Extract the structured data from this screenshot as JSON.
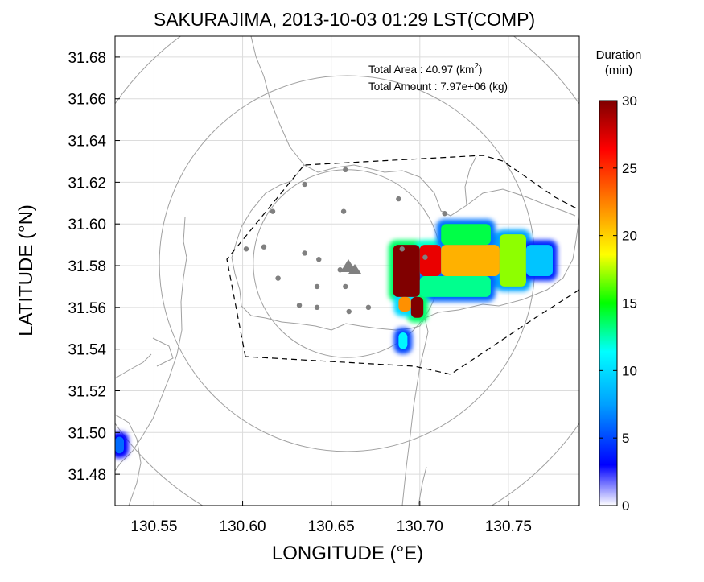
{
  "chart_data": {
    "type": "heatmap",
    "title": "SAKURAJIMA, 2013-10-03 01:29 LST(COMP)",
    "xlabel": "LONGITUDE (°E)",
    "ylabel": "LATITUDE (°N)",
    "xlim": [
      130.528,
      130.79
    ],
    "ylim": [
      31.465,
      31.69
    ],
    "xticks": [
      "130.55",
      "130.60",
      "130.65",
      "130.70",
      "130.75"
    ],
    "yticks": [
      "31.48",
      "31.50",
      "31.52",
      "31.54",
      "31.56",
      "31.58",
      "31.60",
      "31.62",
      "31.64",
      "31.66",
      "31.68"
    ],
    "grid": true,
    "annotations": {
      "total_area_label": "Total Area   : 40.97 (km",
      "total_area_sup": "2",
      "total_area_close": ")",
      "total_amount": "Total Amount : 7.97e+06 (kg)"
    },
    "colorbar": {
      "title_line1": "Duration",
      "title_line2": "(min)",
      "ticks": [
        "0",
        "5",
        "10",
        "15",
        "20",
        "25",
        "30"
      ],
      "min": 0,
      "max": 30
    },
    "vent": {
      "lon": 130.659,
      "lat": 31.581
    },
    "range_rings_radius_km": [
      5,
      10,
      15
    ],
    "stations": [
      [
        130.658,
        31.626
      ],
      [
        130.635,
        31.619
      ],
      [
        130.688,
        31.612
      ],
      [
        130.617,
        31.606
      ],
      [
        130.657,
        31.606
      ],
      [
        130.714,
        31.605
      ],
      [
        130.612,
        31.589
      ],
      [
        130.635,
        31.586
      ],
      [
        130.602,
        31.588
      ],
      [
        130.643,
        31.583
      ],
      [
        130.69,
        31.588
      ],
      [
        130.655,
        31.578
      ],
      [
        130.703,
        31.584
      ],
      [
        130.62,
        31.574
      ],
      [
        130.642,
        31.57
      ],
      [
        130.658,
        31.57
      ],
      [
        130.632,
        31.561
      ],
      [
        130.642,
        31.56
      ],
      [
        130.66,
        31.558
      ],
      [
        130.671,
        31.56
      ]
    ],
    "plume": [
      {
        "lon_min": 130.685,
        "lon_max": 130.7,
        "lat_min": 31.565,
        "lat_max": 31.59,
        "duration": 30
      },
      {
        "lon_min": 130.7,
        "lon_max": 130.712,
        "lat_min": 31.575,
        "lat_max": 31.59,
        "duration": 27
      },
      {
        "lon_min": 130.712,
        "lon_max": 130.745,
        "lat_min": 31.575,
        "lat_max": 31.59,
        "duration": 21
      },
      {
        "lon_min": 130.745,
        "lon_max": 130.76,
        "lat_min": 31.57,
        "lat_max": 31.595,
        "duration": 17
      },
      {
        "lon_min": 130.712,
        "lon_max": 130.74,
        "lat_min": 31.59,
        "lat_max": 31.6,
        "duration": 14
      },
      {
        "lon_min": 130.7,
        "lon_max": 130.74,
        "lat_min": 31.565,
        "lat_max": 31.575,
        "duration": 13
      },
      {
        "lon_min": 130.76,
        "lon_max": 130.775,
        "lat_min": 31.575,
        "lat_max": 31.59,
        "duration": 9
      },
      {
        "lon_min": 130.695,
        "lon_max": 130.702,
        "lat_min": 31.555,
        "lat_max": 31.565,
        "duration": 30
      },
      {
        "lon_min": 130.688,
        "lon_max": 130.695,
        "lat_min": 31.558,
        "lat_max": 31.565,
        "duration": 22
      },
      {
        "lon_min": 130.688,
        "lon_max": 130.693,
        "lat_min": 31.54,
        "lat_max": 31.548,
        "duration": 11
      },
      {
        "lon_min": 130.528,
        "lon_max": 130.533,
        "lat_min": 31.49,
        "lat_max": 31.498,
        "duration": 6
      }
    ]
  }
}
